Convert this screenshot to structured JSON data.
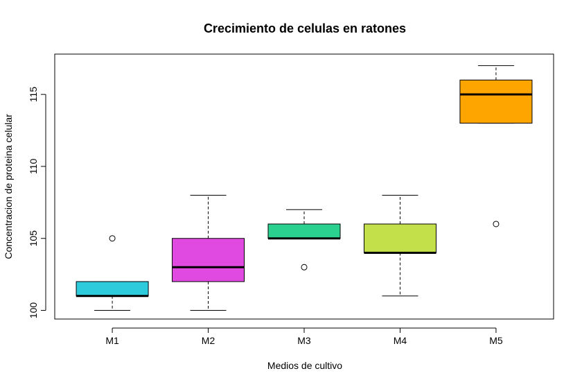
{
  "chart_data": {
    "type": "boxplot",
    "title": "Crecimiento de celulas en ratones",
    "xlabel": "Medios de cultivo",
    "ylabel": "Concentracion de proteina celular",
    "ylim": [
      99.4,
      117.8
    ],
    "yticks": [
      100,
      105,
      110,
      115
    ],
    "categories": [
      "M1",
      "M2",
      "M3",
      "M4",
      "M5"
    ],
    "boxes": [
      {
        "name": "M1",
        "min": 100,
        "q1": 101,
        "median": 101,
        "q3": 102,
        "max": 102,
        "outliers": [
          105
        ],
        "color": "#2ecbdc"
      },
      {
        "name": "M2",
        "min": 100,
        "q1": 102,
        "median": 103,
        "q3": 105,
        "max": 108,
        "outliers": [],
        "color": "#e14ae1"
      },
      {
        "name": "M3",
        "min": 105,
        "q1": 105,
        "median": 105,
        "q3": 106,
        "max": 107,
        "outliers": [
          103
        ],
        "color": "#2bd18e"
      },
      {
        "name": "M4",
        "min": 101,
        "q1": 104,
        "median": 104,
        "q3": 106,
        "max": 108,
        "outliers": [],
        "color": "#c3e04a"
      },
      {
        "name": "M5",
        "min": 113,
        "q1": 113,
        "median": 115,
        "q3": 116,
        "max": 117,
        "outliers": [
          106
        ],
        "color": "#ffa500"
      }
    ],
    "grid": false,
    "legend": "none"
  }
}
